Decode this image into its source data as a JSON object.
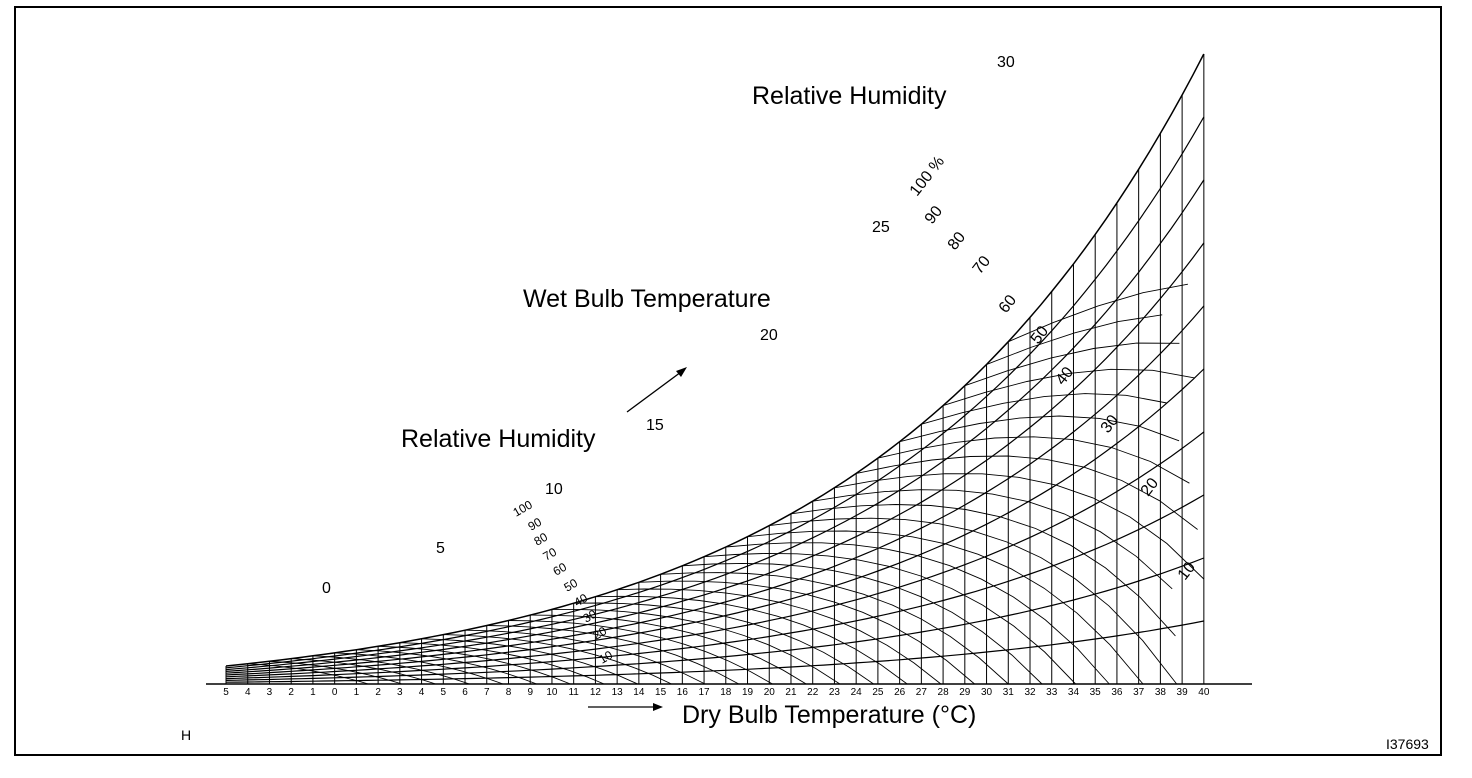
{
  "labels": {
    "rh_top": "Relative Humidity",
    "wet_bulb": "Wet Bulb Temperature",
    "rh_left": "Relative Humidity",
    "dry_bulb": "Dry Bulb Temperature (°C)",
    "corner_h": "H",
    "figure_id": "I37693"
  },
  "chart_data": {
    "type": "psychrometric",
    "x_axis": {
      "label": "Dry Bulb Temperature (°C)",
      "ticks": [
        "5",
        "4",
        "3",
        "2",
        "1",
        "0",
        "1",
        "2",
        "3",
        "4",
        "5",
        "6",
        "7",
        "8",
        "9",
        "10",
        "11",
        "12",
        "13",
        "14",
        "15",
        "16",
        "17",
        "18",
        "19",
        "20",
        "21",
        "22",
        "23",
        "24",
        "25",
        "26",
        "27",
        "28",
        "29",
        "30",
        "31",
        "32",
        "33",
        "34",
        "35",
        "36",
        "37",
        "38",
        "39",
        "40"
      ],
      "range": [
        -5,
        40
      ]
    },
    "relative_humidity_curves": [
      "100 %",
      "90",
      "80",
      "70",
      "60",
      "50",
      "40",
      "30",
      "20",
      "10"
    ],
    "relative_humidity_left_labels": [
      "100",
      "90",
      "80",
      "70",
      "60",
      "50",
      "40",
      "30",
      "20",
      "10"
    ],
    "wet_bulb_labels": [
      "0",
      "5",
      "10",
      "15",
      "20",
      "25",
      "30"
    ]
  }
}
